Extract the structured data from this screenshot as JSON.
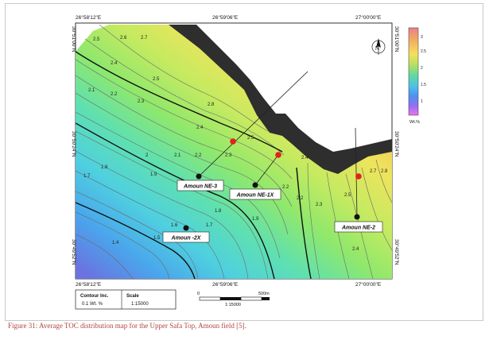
{
  "map": {
    "coords": {
      "top_left": "26°58'12\"E",
      "top_mid": "26°59'06\"E",
      "top_right": "27°00'00\"E",
      "bottom_left": "26°58'12\"E",
      "bottom_mid": "26°59'06\"E",
      "bottom_right": "27°00'00\"E",
      "left_top": "30°51'00\"N",
      "left_mid": "30°50'24\"N",
      "left_bottom": "30°49'52\"N",
      "right_top": "30°51'00\"N",
      "right_mid": "30°50'24\"N",
      "right_bottom": "30°49'52\"N"
    },
    "wells": [
      {
        "name": "Amoun NE-3"
      },
      {
        "name": "Amoun NE-1X"
      },
      {
        "name": "Amoun NE-2"
      },
      {
        "name": "Amoun -2X"
      }
    ],
    "contour_labels": [
      "2.6",
      "2.7",
      "2.5",
      "2.4",
      "2.8",
      "2.3",
      "2.2",
      "2.1",
      "2",
      "1.9",
      "1.8",
      "1.7",
      "1.6",
      "1.5",
      "1.4"
    ],
    "colorbar": {
      "ticks": [
        "3",
        "2.5",
        "2",
        "1.5",
        "1"
      ],
      "unit": "Wt.%",
      "colors": [
        "#e8808a",
        "#f0b060",
        "#f4e060",
        "#b8e060",
        "#60d8a0",
        "#50c0e8",
        "#5090f0",
        "#9070f0",
        "#f070f0"
      ]
    },
    "north": "N",
    "legend": {
      "contour_header": "Contour Inc.",
      "contour_value": "0.1 Wt. %",
      "scale_header": "Scale",
      "scale_value": "1:15000"
    },
    "scalebar": {
      "zero": "0",
      "distance": "500m",
      "ratio": "1:15000"
    }
  },
  "caption": {
    "prefix": "Figure 31:",
    "text": "Average TOC distribution map for the Upper Safa Top, Amoun field [5]."
  }
}
